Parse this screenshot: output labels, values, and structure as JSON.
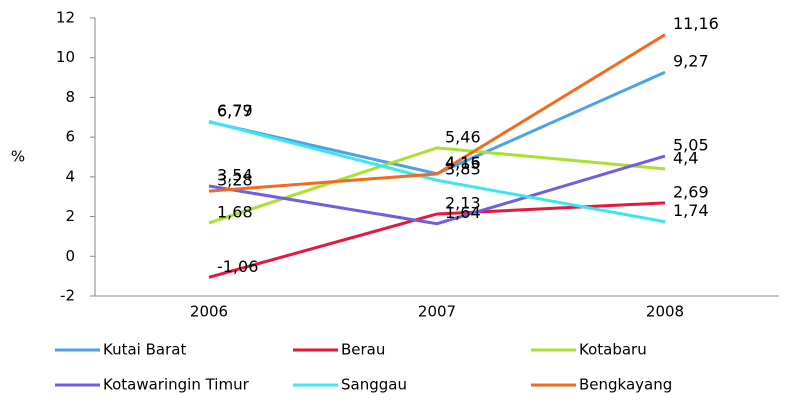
{
  "chart_data": {
    "type": "line",
    "y_label": "%",
    "categories": [
      "2006",
      "2007",
      "2008"
    ],
    "ylim": [
      -2,
      12
    ],
    "yticks": [
      -2,
      0,
      2,
      4,
      6,
      8,
      10,
      12
    ],
    "grid": false,
    "series": [
      {
        "name": "Kutai Barat",
        "color": "#4aa3e6",
        "values": [
          6.77,
          4.16,
          9.27
        ],
        "value_labels": [
          "6,77",
          "4,16",
          "9,27"
        ]
      },
      {
        "name": "Berau",
        "color": "#e8163c",
        "values": [
          -1.06,
          2.13,
          2.69
        ],
        "value_labels": [
          "-1,06",
          "2,13",
          "2,69"
        ]
      },
      {
        "name": "Kotabaru",
        "color": "#a6e22e",
        "values": [
          1.68,
          5.46,
          4.4
        ],
        "value_labels": [
          "1,68",
          "5,46",
          "4,4"
        ]
      },
      {
        "name": "Kotawaringin Timur",
        "color": "#6f5fe0",
        "values": [
          3.54,
          1.64,
          5.05
        ],
        "value_labels": [
          "3,54",
          "1,64",
          "5,05"
        ]
      },
      {
        "name": "Sanggau",
        "color": "#3ee4ef",
        "values": [
          6.79,
          3.83,
          1.74
        ],
        "value_labels": [
          "6,79",
          "3,83",
          "1,74"
        ]
      },
      {
        "name": "Bengkayang",
        "color": "#f26b1d",
        "values": [
          3.28,
          4.15,
          11.16
        ],
        "value_labels": [
          "3,28",
          "4,15",
          "11,16"
        ]
      }
    ]
  }
}
